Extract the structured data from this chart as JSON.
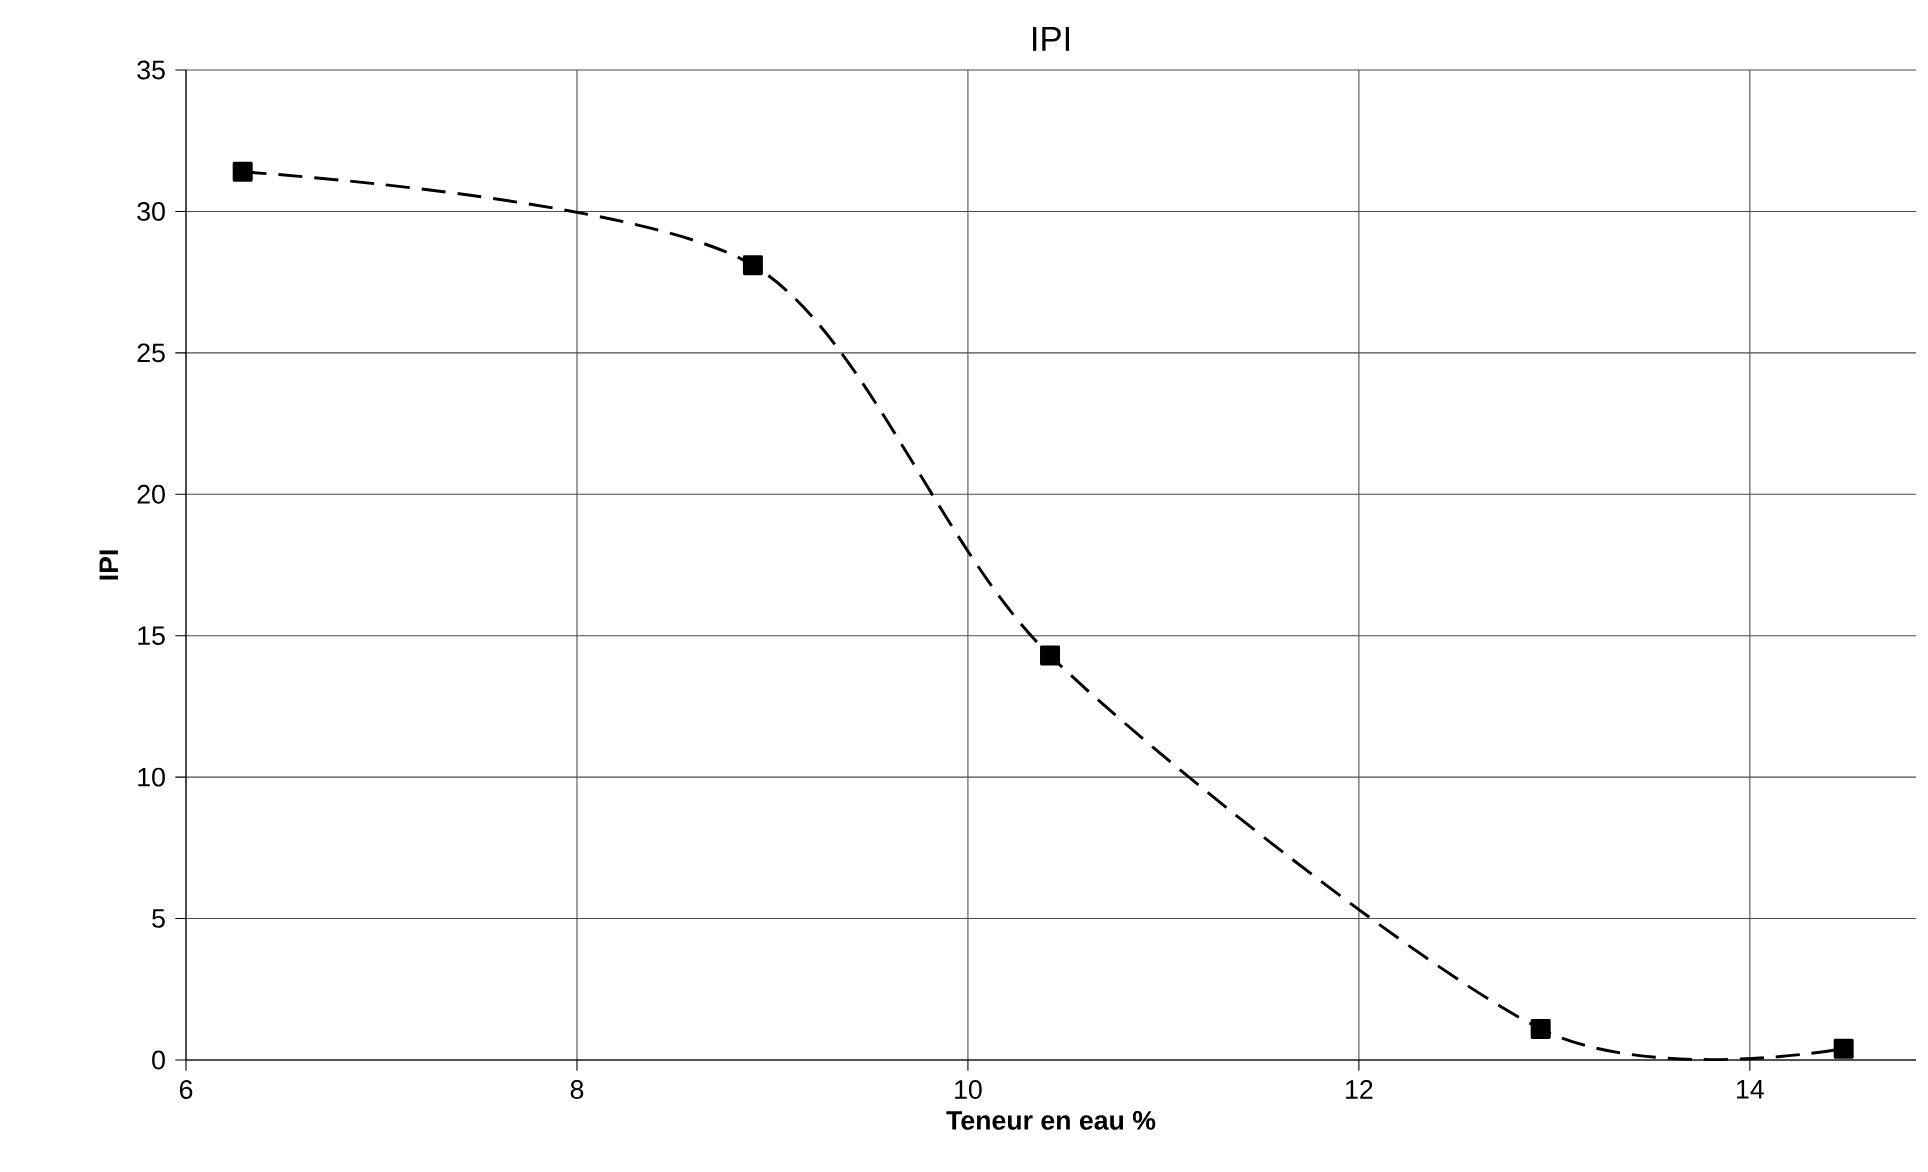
{
  "chart_data": {
    "type": "line",
    "title": "IPI",
    "xlabel": "Teneur en eau %",
    "ylabel": "IPI",
    "x": [
      6.29,
      8.9,
      10.42,
      12.93,
      14.48
    ],
    "series": [
      {
        "color": "#000000",
        "values": [
          31.4,
          28.1,
          14.3,
          1.1,
          0.4
        ]
      }
    ],
    "xlim": [
      6,
      14.85
    ],
    "xticks": [
      6,
      8,
      10,
      12,
      14
    ],
    "ylim": [
      0,
      35
    ],
    "yticks": [
      0,
      5,
      10,
      15,
      20,
      25,
      30,
      35
    ],
    "grid": true,
    "marker": "square",
    "line_style": "dashed"
  }
}
